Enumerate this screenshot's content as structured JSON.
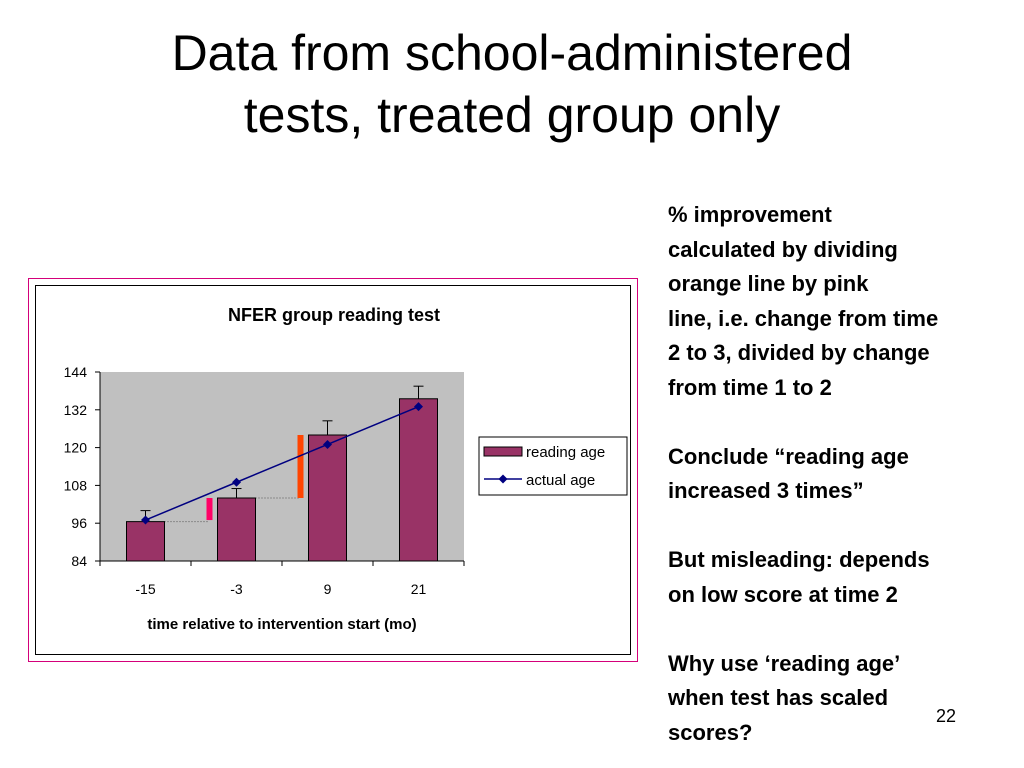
{
  "slide": {
    "title_lines": [
      "Data from school-administered",
      "tests, treated group only"
    ],
    "page_number": "22"
  },
  "notes": [
    [
      "% improvement",
      "calculated by dividing",
      "orange line by pink",
      "line, i.e. change from time",
      "2 to 3, divided by change",
      "from time 1 to 2"
    ],
    [
      "Conclude “reading age",
      "increased 3 times”"
    ],
    [
      "But misleading: depends",
      "on low score at time 2"
    ],
    [
      "Why use ‘reading age’",
      "when test has scaled",
      "scores?"
    ]
  ],
  "chart_data": {
    "type": "bar",
    "title": "NFER group reading test",
    "xlabel": "time relative to intervention start (mo)",
    "ylabel": "",
    "categories": [
      "-15",
      "-3",
      "9",
      "21"
    ],
    "ylim": [
      84,
      144
    ],
    "yticks": [
      84,
      96,
      108,
      120,
      132,
      144
    ],
    "grid": false,
    "legend_position": "right",
    "series": [
      {
        "name": "reading age",
        "type": "bar",
        "values": [
          96.5,
          104,
          124,
          135.5
        ],
        "error_upper": [
          100,
          107,
          128.5,
          139.5
        ],
        "color": "#993366"
      },
      {
        "name": "actual age",
        "type": "line",
        "values": [
          97,
          109,
          121,
          133
        ],
        "color": "#000080"
      }
    ],
    "annotations": [
      {
        "type": "vertical-segment",
        "description": "pink line",
        "x": "-3",
        "from": 97,
        "to": 104,
        "color": "#ff0066"
      },
      {
        "type": "vertical-segment",
        "description": "orange line",
        "x": "9",
        "from": 104,
        "to": 124,
        "color": "#ff4400"
      }
    ],
    "colors": {
      "plot_background": "#c0c0c0",
      "frame": "#d4007a"
    }
  }
}
